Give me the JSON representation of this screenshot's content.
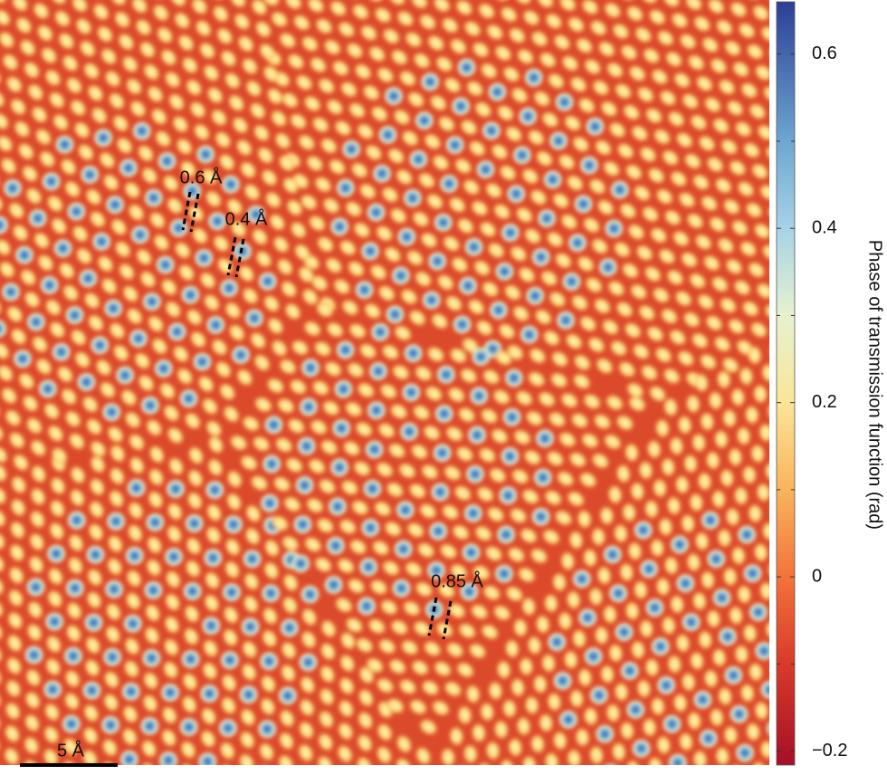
{
  "image": {
    "annotations": [
      "0.6 Å",
      "0.4 Å",
      "0.85 Å"
    ],
    "scale_bar": "5 Å"
  },
  "colorbar": {
    "label": "Phase of transmission function (rad)",
    "lim": [
      -0.216,
      0.66
    ],
    "ticks": [
      {
        "value": -0.2,
        "label": "−0.2"
      },
      0,
      0.2,
      0.4,
      0.6
    ],
    "minor_ticks": [
      -0.1,
      0.1,
      0.3,
      0.5
    ]
  }
}
